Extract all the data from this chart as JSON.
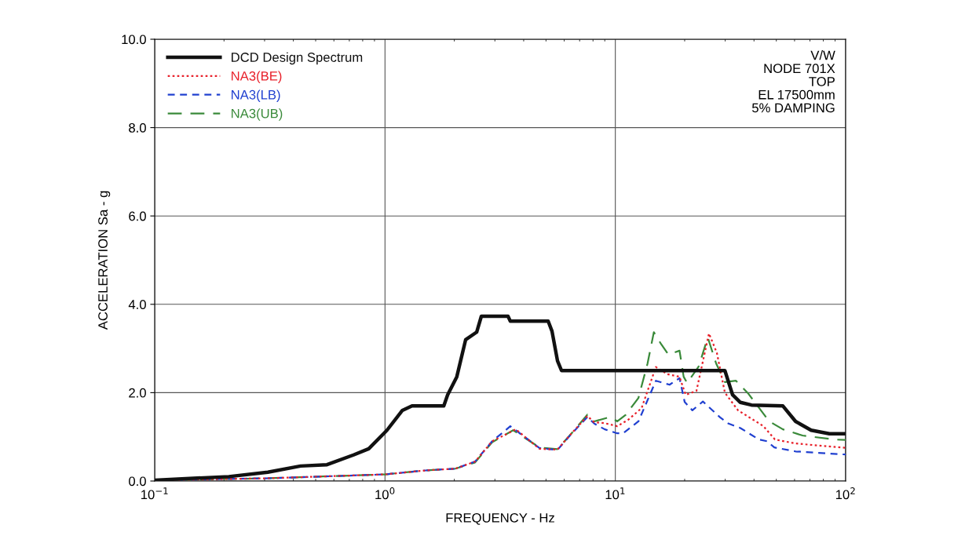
{
  "chart_data": {
    "type": "line",
    "xlabel": "FREQUENCY - Hz",
    "ylabel": "ACCELERATION Sa - g",
    "log": "x",
    "grid": true,
    "legend": "top left",
    "xlim": [
      0.1,
      100
    ],
    "xticks": [
      {
        "value": 0.1,
        "label": "10$^{−1}$"
      },
      {
        "value": 1,
        "label": "10$^{0}$"
      },
      {
        "value": 10,
        "label": "10$^{1}$"
      },
      {
        "value": 100,
        "label": "10$^{2}$"
      }
    ],
    "ylim": [
      0,
      10
    ],
    "yticks": [
      {
        "value": 0,
        "label": "0.0"
      },
      {
        "value": 2,
        "label": "2.0"
      },
      {
        "value": 4,
        "label": "4.0"
      },
      {
        "value": 6,
        "label": "6.0"
      },
      {
        "value": 8,
        "label": "8.0"
      },
      {
        "value": 10,
        "label": "10.0"
      }
    ],
    "annotations": [
      "V/W",
      "NODE 701X",
      "TOP",
      "EL 17500mm",
      "5% DAMPING"
    ],
    "series": [
      {
        "name": "DCD Design Spectrum",
        "color": "#111111",
        "line_style": "solid",
        "x": [
          0.1,
          0.21,
          0.31,
          0.43,
          0.56,
          0.73,
          0.85,
          1.02,
          1.19,
          1.31,
          1.8,
          1.87,
          2.05,
          2.24,
          2.5,
          2.62,
          3.42,
          3.5,
          5.11,
          5.31,
          5.61,
          5.84,
          29.9,
          32.3,
          34.9,
          39,
          53.4,
          60.6,
          70.8,
          85,
          100
        ],
        "values": [
          0.02,
          0.1,
          0.2,
          0.34,
          0.37,
          0.59,
          0.73,
          1.15,
          1.6,
          1.7,
          1.7,
          1.95,
          2.36,
          3.2,
          3.37,
          3.73,
          3.73,
          3.62,
          3.62,
          3.39,
          2.72,
          2.5,
          2.5,
          1.95,
          1.78,
          1.72,
          1.7,
          1.35,
          1.15,
          1.07,
          1.07
        ]
      },
      {
        "name": "NA3(BE)",
        "color": "#e8202a",
        "line_style": "dotted",
        "x": [
          0.1,
          0.3,
          1.0,
          1.5,
          2.02,
          2.46,
          2.92,
          3.7,
          4.68,
          5.6,
          6.41,
          7.56,
          8.1,
          9.0,
          10.2,
          11.4,
          13,
          15,
          16.8,
          19,
          20.2,
          22.5,
          25.5,
          27.6,
          29.9,
          34.1,
          42.2,
          44,
          49.3,
          60.6,
          100
        ],
        "values": [
          0.02,
          0.06,
          0.15,
          0.24,
          0.28,
          0.44,
          0.9,
          1.17,
          0.73,
          0.71,
          1.06,
          1.47,
          1.33,
          1.31,
          1.24,
          1.39,
          1.65,
          2.58,
          2.42,
          2.36,
          1.95,
          2.04,
          3.34,
          2.9,
          2.0,
          1.6,
          1.3,
          1.24,
          0.94,
          0.85,
          0.75
        ]
      },
      {
        "name": "NA3(LB)",
        "color": "#2040d0",
        "line_style": "dashed",
        "x": [
          0.1,
          0.3,
          1.0,
          1.5,
          2.02,
          2.46,
          2.92,
          3.5,
          4.68,
          5.6,
          6.41,
          7.56,
          8.1,
          9.0,
          10.2,
          10.8,
          12.6,
          15,
          17.2,
          19,
          20,
          21.6,
          24,
          28.5,
          31,
          34.9,
          42,
          45.6,
          49,
          60.6,
          100
        ],
        "values": [
          0.02,
          0.06,
          0.15,
          0.24,
          0.28,
          0.44,
          0.9,
          1.24,
          0.75,
          0.7,
          1.05,
          1.45,
          1.3,
          1.17,
          1.08,
          1.08,
          1.35,
          2.27,
          2.18,
          2.33,
          1.79,
          1.6,
          1.8,
          1.44,
          1.3,
          1.2,
          0.94,
          0.9,
          0.76,
          0.67,
          0.6
        ]
      },
      {
        "name": "NA3(UB)",
        "color": "#3a8a3a",
        "line_style": "dashed",
        "x": [
          0.1,
          0.3,
          1.0,
          1.5,
          2.02,
          2.46,
          2.92,
          3.6,
          4.68,
          5.6,
          6.41,
          7.56,
          8.1,
          9.5,
          10.2,
          11.1,
          12.6,
          13.8,
          14.7,
          15.8,
          17,
          19,
          19.8,
          20.5,
          23,
          25.2,
          27.4,
          29.9,
          33.4,
          37.9,
          46.6,
          53.4,
          65,
          89,
          100
        ],
        "values": [
          0.02,
          0.06,
          0.15,
          0.24,
          0.28,
          0.42,
          0.88,
          1.15,
          0.76,
          0.72,
          1.06,
          1.5,
          1.35,
          1.45,
          1.35,
          1.5,
          1.88,
          2.66,
          3.37,
          3.1,
          2.86,
          2.95,
          2.36,
          2.22,
          2.59,
          3.25,
          2.66,
          2.24,
          2.27,
          1.97,
          1.35,
          1.17,
          1.03,
          0.94,
          0.93
        ]
      }
    ]
  }
}
